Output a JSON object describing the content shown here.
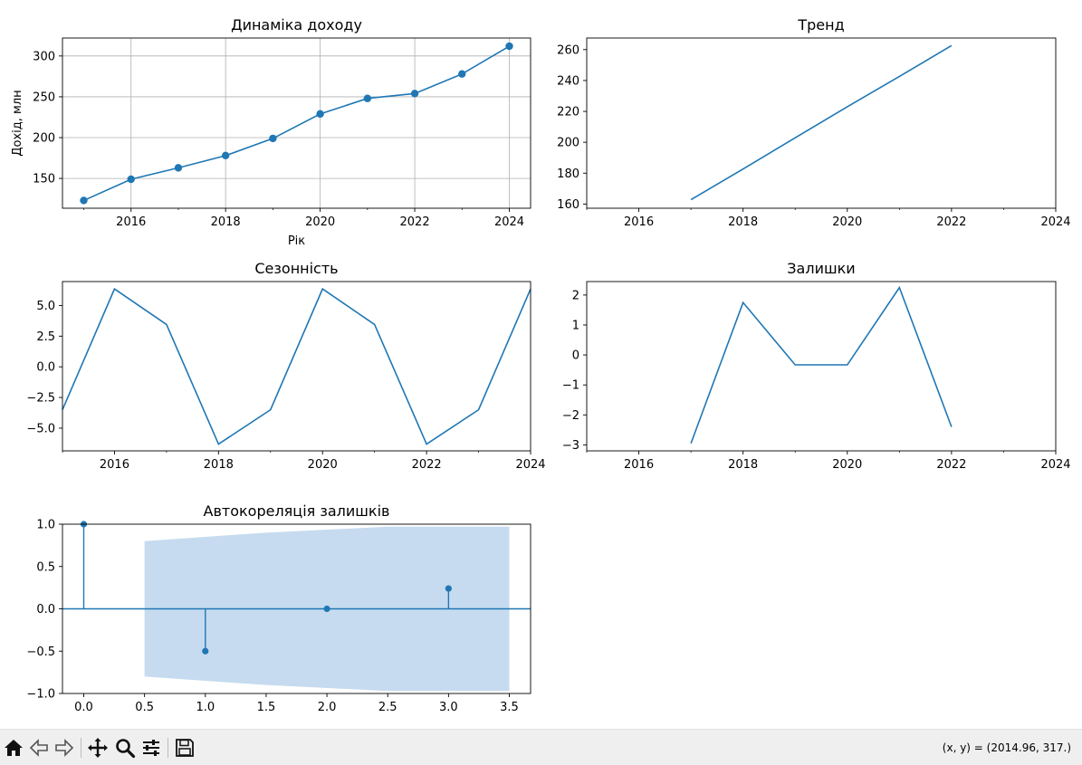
{
  "chart_data": [
    {
      "id": "income",
      "type": "line",
      "title": "Динаміка доходу",
      "xlabel": "Рік",
      "ylabel": "Дохід, млн",
      "x": [
        2015,
        2016,
        2017,
        2018,
        2019,
        2020,
        2021,
        2022,
        2023,
        2024
      ],
      "values": [
        123,
        149,
        163,
        178,
        199,
        229,
        248,
        254,
        278,
        312
      ],
      "markers": true,
      "grid": true,
      "xlim": [
        2014.55,
        2024.45
      ],
      "ylim": [
        113.5,
        322
      ],
      "xticks": [
        2016,
        2018,
        2020,
        2022,
        2024
      ],
      "yticks": [
        150,
        200,
        250,
        300
      ],
      "xtick_labels": [
        "2016",
        "2018",
        "2020",
        "2022",
        "2024"
      ],
      "ytick_labels": [
        "150",
        "200",
        "250",
        "300"
      ]
    },
    {
      "id": "trend",
      "type": "line",
      "title": "Тренд",
      "x": [
        2017,
        2018,
        2019,
        2020,
        2021,
        2022
      ],
      "values": [
        162.8,
        182.7,
        202.9,
        223.0,
        242.6,
        262.6
      ],
      "grid": false,
      "xlim": [
        2015,
        2024
      ],
      "ylim": [
        157.3,
        267.5
      ],
      "xticks": [
        2016,
        2018,
        2020,
        2022,
        2024
      ],
      "yticks": [
        160,
        180,
        200,
        220,
        240,
        260
      ],
      "xtick_labels": [
        "2016",
        "2018",
        "2020",
        "2022",
        "2024"
      ],
      "ytick_labels": [
        "160",
        "180",
        "200",
        "220",
        "240",
        "260"
      ]
    },
    {
      "id": "seasonal",
      "type": "line",
      "title": "Сезонність",
      "x": [
        2015,
        2016,
        2017,
        2018,
        2019,
        2020,
        2021,
        2022,
        2023,
        2024
      ],
      "values": [
        -3.5,
        6.35,
        3.45,
        -6.3,
        -3.5,
        6.35,
        3.45,
        -6.3,
        -3.5,
        6.35
      ],
      "grid": false,
      "xlim": [
        2015,
        2024
      ],
      "ylim": [
        -6.85,
        6.95
      ],
      "xticks": [
        2016,
        2018,
        2020,
        2022,
        2024
      ],
      "yticks": [
        -5.0,
        -2.5,
        0.0,
        2.5,
        5.0
      ],
      "xtick_labels": [
        "2016",
        "2018",
        "2020",
        "2022",
        "2024"
      ],
      "ytick_labels": [
        "−5.0",
        "−2.5",
        "0.0",
        "2.5",
        "5.0"
      ]
    },
    {
      "id": "resid",
      "type": "line",
      "title": "Залишки",
      "x": [
        2017,
        2018,
        2019,
        2020,
        2021,
        2022
      ],
      "values": [
        -2.95,
        1.75,
        -0.33,
        -0.33,
        2.25,
        -2.4
      ],
      "grid": false,
      "xlim": [
        2015,
        2024
      ],
      "ylim": [
        -3.2,
        2.45
      ],
      "xticks": [
        2016,
        2018,
        2020,
        2022,
        2024
      ],
      "yticks": [
        -3,
        -2,
        -1,
        0,
        1,
        2
      ],
      "xtick_labels": [
        "2016",
        "2018",
        "2020",
        "2022",
        "2024"
      ],
      "ytick_labels": [
        "−3",
        "−2",
        "−1",
        "0",
        "1",
        "2"
      ]
    },
    {
      "id": "acf",
      "type": "stem",
      "title": "Автокореляція залишків",
      "x": [
        0,
        1,
        2,
        3
      ],
      "values": [
        1.0,
        -0.5,
        0.0,
        0.24
      ],
      "confidence_band": {
        "x": [
          0.5,
          1.5,
          2.5,
          3.5
        ],
        "upper": [
          0.8,
          0.9,
          0.97,
          0.97
        ],
        "lower": [
          -0.8,
          -0.9,
          -0.97,
          -0.97
        ]
      },
      "grid": false,
      "xlim": [
        -0.175,
        3.675
      ],
      "ylim": [
        -1.0,
        1.0
      ],
      "xticks": [
        0.0,
        0.5,
        1.0,
        1.5,
        2.0,
        2.5,
        3.0,
        3.5
      ],
      "yticks": [
        -1.0,
        -0.5,
        0.0,
        0.5,
        1.0
      ],
      "xtick_labels": [
        "0.0",
        "0.5",
        "1.0",
        "1.5",
        "2.0",
        "2.5",
        "3.0",
        "3.5"
      ],
      "ytick_labels": [
        "−1.0",
        "−0.5",
        "0.0",
        "0.5",
        "1.0"
      ]
    }
  ],
  "colors": {
    "series": "#1f77b4",
    "band": "#c6dbef",
    "grid": "#b0b0b0",
    "axis": "#000000",
    "toolbar_bg": "#efefef"
  },
  "toolbar": {
    "icons": [
      "home-icon",
      "back-icon",
      "forward-icon",
      "pan-icon",
      "zoom-icon",
      "configure-icon",
      "save-icon"
    ],
    "coords": "(x, y) = (2014.96, 317.)"
  }
}
